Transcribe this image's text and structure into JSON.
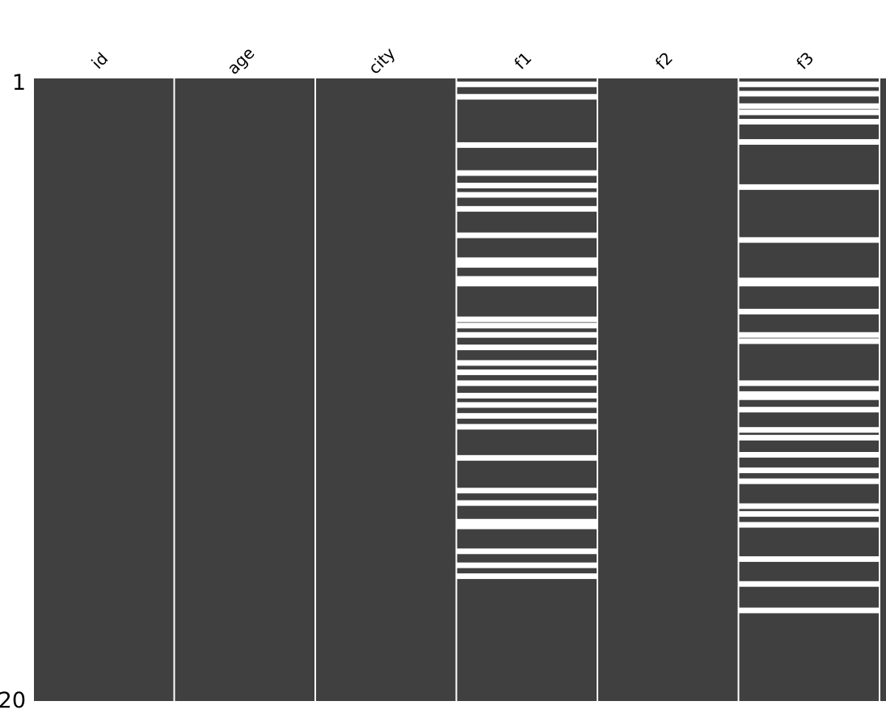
{
  "chart_data": {
    "type": "heatmap",
    "title": "",
    "columns": [
      "id",
      "age",
      "city",
      "f1",
      "f2",
      "f3"
    ],
    "row_labels": {
      "first": "1",
      "last": "20"
    },
    "present_color": "#404040",
    "missing_color": "#ffffff",
    "missing_rows": {
      "id": [],
      "age": [],
      "city": [],
      "f1": [
        0.1,
        0.5,
        2.05,
        2.95,
        3.35,
        3.65,
        4.1,
        4.95,
        5.75,
        5.9,
        6.35,
        6.5,
        7.65,
        7.85,
        8.15,
        8.55,
        9.05,
        9.35,
        9.7,
        10.1,
        10.4,
        10.75,
        11.1,
        12.1,
        13.15,
        13.55,
        14.15,
        14.3,
        15.1,
        15.55,
        15.9
      ],
      "f2": [],
      "f3": [
        0.1,
        0.4,
        0.8,
        1.0,
        1.3,
        1.95,
        3.4,
        5.1,
        6.4,
        6.5,
        7.4,
        8.15,
        8.35,
        9.7,
        10.05,
        10.15,
        10.55,
        11.2,
        11.45,
        12.0,
        12.5,
        12.85,
        13.65,
        13.9,
        14.25,
        15.35,
        16.15,
        17.0
      ]
    },
    "grid": false,
    "legend": "none"
  }
}
